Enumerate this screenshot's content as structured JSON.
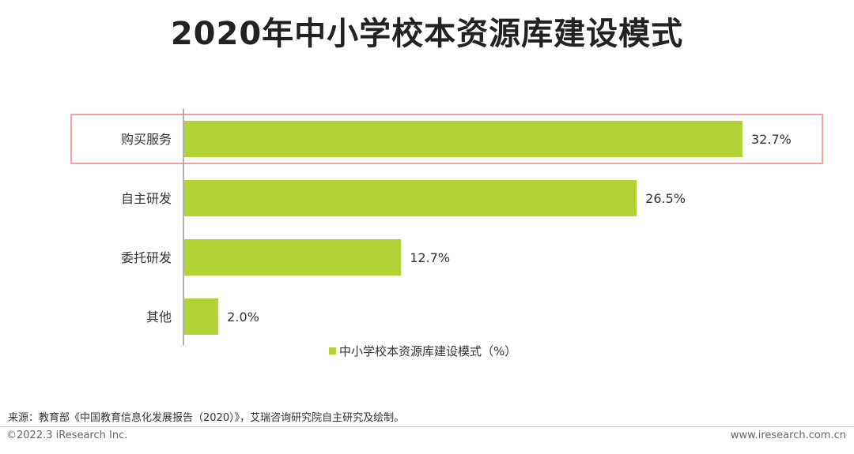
{
  "chart_data": {
    "type": "bar",
    "orientation": "horizontal",
    "title": "2020年中小学校本资源库建设模式",
    "categories": [
      "购买服务",
      "自主研发",
      "委托研发",
      "其他"
    ],
    "series": [
      {
        "name": "中小学校本资源库建设模式（%）",
        "values": [
          32.7,
          26.5,
          12.7,
          2.0
        ],
        "labels": [
          "32.7%",
          "26.5%",
          "12.7%",
          "2.0%"
        ]
      }
    ],
    "xlim": [
      0,
      40
    ],
    "grid": false,
    "legend_position": "bottom",
    "highlighted_category": "购买服务",
    "colors": {
      "bar": "#b2d235",
      "highlight_box": "#f2a0a4",
      "axis": "#999999"
    }
  },
  "footer": {
    "source": "来源：教育部《中国教育信息化发展报告（2020）》，艾瑞咨询研究院自主研究及绘制。",
    "copyright": "©2022.3 iResearch Inc.",
    "website": "www.iresearch.com.cn"
  }
}
